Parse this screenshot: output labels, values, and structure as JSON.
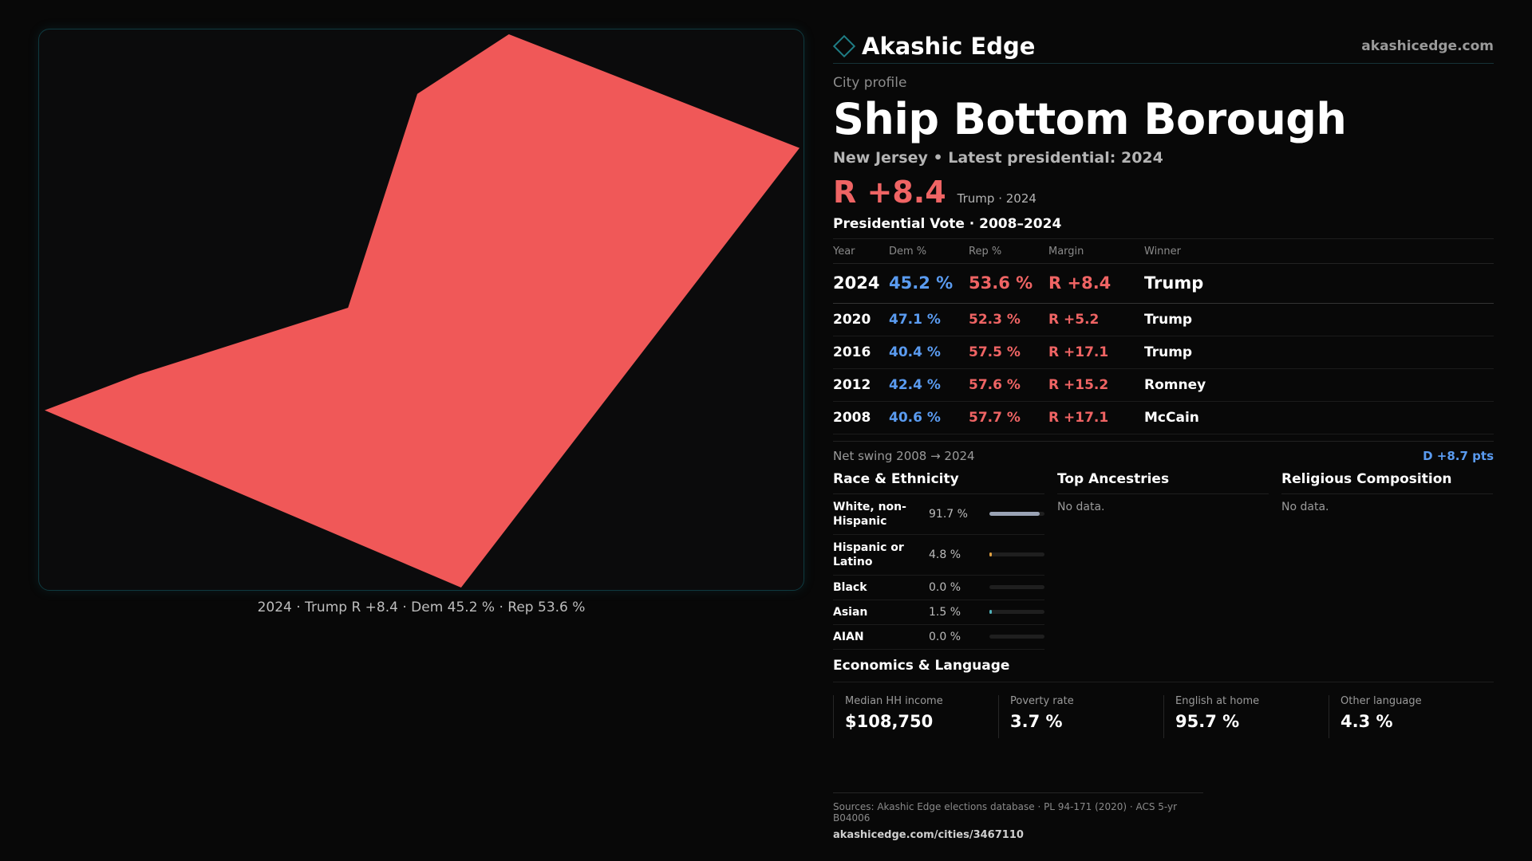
{
  "brand": {
    "name": "Akashic Edge",
    "url": "akashicedge.com"
  },
  "map": {
    "caption": "2024 · Trump R +8.4 · Dem 45.2 % · Rep 53.6 %",
    "fill_color": "#f05858"
  },
  "profile": {
    "eyebrow": "City profile",
    "title": "Ship Bottom Borough",
    "subtitle": "New Jersey • Latest presidential: 2024",
    "margin": "R +8.4",
    "margin_note": "Trump · 2024"
  },
  "vote": {
    "title": "Presidential Vote · 2008–2024",
    "headers": [
      "Year",
      "Dem %",
      "Rep %",
      "Margin",
      "Winner"
    ],
    "rows": [
      {
        "year": "2024",
        "dem": "45.2 %",
        "rep": "53.6 %",
        "margin": "R +8.4",
        "winner": "Trump"
      },
      {
        "year": "2020",
        "dem": "47.1 %",
        "rep": "52.3 %",
        "margin": "R +5.2",
        "winner": "Trump"
      },
      {
        "year": "2016",
        "dem": "40.4 %",
        "rep": "57.5 %",
        "margin": "R +17.1",
        "winner": "Trump"
      },
      {
        "year": "2012",
        "dem": "42.4 %",
        "rep": "57.6 %",
        "margin": "R +15.2",
        "winner": "Romney"
      },
      {
        "year": "2008",
        "dem": "40.6 %",
        "rep": "57.7 %",
        "margin": "R +17.1",
        "winner": "McCain"
      }
    ],
    "swing_label": "Net swing 2008 → 2024",
    "swing_value": "D +8.7 pts"
  },
  "race": {
    "title": "Race & Ethnicity",
    "rows": [
      {
        "label": "White, non-Hispanic",
        "value": "91.7 %",
        "fraction": 0.917,
        "color": "#9aa3b5"
      },
      {
        "label": "Hispanic or Latino",
        "value": "4.8 %",
        "fraction": 0.048,
        "color": "#e0a040"
      },
      {
        "label": "Black",
        "value": "0.0 %",
        "fraction": 0.0,
        "color": "#9aa3b5"
      },
      {
        "label": "Asian",
        "value": "1.5 %",
        "fraction": 0.015,
        "color": "#4fb0b8"
      },
      {
        "label": "AIAN",
        "value": "0.0 %",
        "fraction": 0.0,
        "color": "#9aa3b5"
      }
    ]
  },
  "ancestry": {
    "title": "Top Ancestries",
    "empty": "No data."
  },
  "religion": {
    "title": "Religious Composition",
    "empty": "No data."
  },
  "econ": {
    "title": "Economics & Language",
    "cells": [
      {
        "label": "Median HH income",
        "value": "$108,750"
      },
      {
        "label": "Poverty rate",
        "value": "3.7 %"
      },
      {
        "label": "English at home",
        "value": "95.7 %"
      },
      {
        "label": "Other language",
        "value": "4.3 %"
      }
    ]
  },
  "footer": {
    "sources": "Sources: Akashic Edge elections database · PL 94-171 (2020) · ACS 5-yr B04006",
    "url": "akashicedge.com/cities/3467110"
  }
}
